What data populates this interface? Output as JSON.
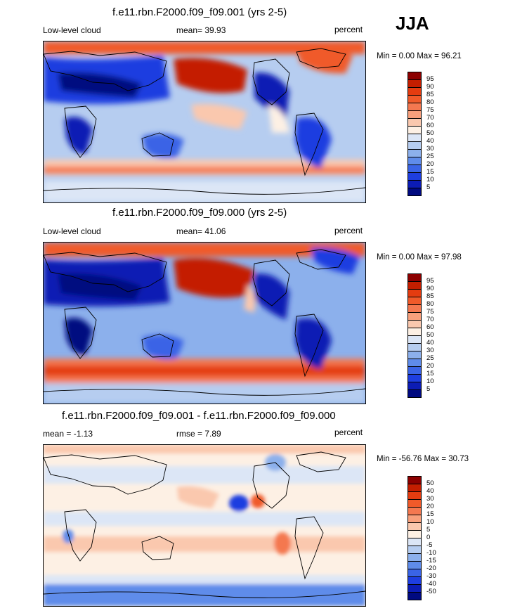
{
  "season": "JJA",
  "panels": [
    {
      "title": "f.e11.rbn.F2000.f09_f09.001 (yrs 2-5)",
      "variable": "Low-level cloud",
      "stat": "mean=  39.93",
      "units": "percent",
      "minmax": "Min =   0.00 Max =  96.21",
      "colorbar": {
        "ticks": [
          "95",
          "90",
          "85",
          "80",
          "75",
          "70",
          "60",
          "50",
          "40",
          "30",
          "25",
          "20",
          "15",
          "10",
          "5"
        ],
        "colors": [
          "#8c0000",
          "#c41e00",
          "#e43c10",
          "#f05a2a",
          "#f47850",
          "#f8a07c",
          "#fac8ae",
          "#fdf0e4",
          "#dce6f6",
          "#b6cdf0",
          "#8cb0ec",
          "#5f8cea",
          "#3a64e6",
          "#1e3ee0",
          "#0c1cb4",
          "#000a80"
        ]
      }
    },
    {
      "title": "f.e11.rbn.F2000.f09_f09.000 (yrs 2-5)",
      "variable": "Low-level cloud",
      "stat": "mean=  41.06",
      "units": "percent",
      "minmax": "Min =   0.00 Max =  97.98",
      "colorbar": {
        "ticks": [
          "95",
          "90",
          "85",
          "80",
          "75",
          "70",
          "60",
          "50",
          "40",
          "30",
          "25",
          "20",
          "15",
          "10",
          "5"
        ],
        "colors": [
          "#8c0000",
          "#c41e00",
          "#e43c10",
          "#f05a2a",
          "#f47850",
          "#f8a07c",
          "#fac8ae",
          "#fdf0e4",
          "#dce6f6",
          "#b6cdf0",
          "#8cb0ec",
          "#5f8cea",
          "#3a64e6",
          "#1e3ee0",
          "#0c1cb4",
          "#000a80"
        ]
      }
    },
    {
      "title": "f.e11.rbn.F2000.f09_f09.001 - f.e11.rbn.F2000.f09_f09.000",
      "variable": "mean =  -1.13",
      "stat": "rmse =   7.89",
      "units": "percent",
      "minmax": "Min = -56.76 Max =  30.73",
      "colorbar": {
        "ticks": [
          "50",
          "40",
          "30",
          "20",
          "15",
          "10",
          "5",
          "0",
          "-5",
          "-10",
          "-15",
          "-20",
          "-30",
          "-40",
          "-50"
        ],
        "colors": [
          "#8c0000",
          "#c41e00",
          "#e43c10",
          "#f05a2a",
          "#f47850",
          "#f8a07c",
          "#fac8ae",
          "#fdf0e4",
          "#dce6f6",
          "#b6cdf0",
          "#8cb0ec",
          "#5f8cea",
          "#3a64e6",
          "#1e3ee0",
          "#0c1cb4",
          "#000a80"
        ]
      }
    }
  ],
  "chart_data": [
    {
      "type": "heatmap",
      "title": "f.e11.rbn.F2000.f09_f09.001 (yrs 2-5)",
      "left_label": "Low-level cloud",
      "center_label": "mean=  39.93",
      "units": "percent",
      "mean": 39.93,
      "min": 0.0,
      "max": 96.21,
      "levels": [
        5,
        10,
        15,
        20,
        25,
        30,
        40,
        50,
        60,
        70,
        75,
        80,
        85,
        90,
        95
      ],
      "projection": "global cylindrical equidistant, centered near 180"
    },
    {
      "type": "heatmap",
      "title": "f.e11.rbn.F2000.f09_f09.000 (yrs 2-5)",
      "left_label": "Low-level cloud",
      "center_label": "mean=  41.06",
      "units": "percent",
      "mean": 41.06,
      "min": 0.0,
      "max": 97.98,
      "levels": [
        5,
        10,
        15,
        20,
        25,
        30,
        40,
        50,
        60,
        70,
        75,
        80,
        85,
        90,
        95
      ],
      "projection": "global cylindrical equidistant, centered near 180"
    },
    {
      "type": "heatmap",
      "title": "f.e11.rbn.F2000.f09_f09.001 - f.e11.rbn.F2000.f09_f09.000",
      "left_label": "mean =  -1.13",
      "center_label": "rmse =   7.89",
      "units": "percent",
      "mean": -1.13,
      "rmse": 7.89,
      "min": -56.76,
      "max": 30.73,
      "levels": [
        -50,
        -40,
        -30,
        -20,
        -15,
        -10,
        -5,
        0,
        5,
        10,
        15,
        20,
        30,
        40,
        50
      ],
      "projection": "global cylindrical equidistant, centered near 180"
    }
  ]
}
